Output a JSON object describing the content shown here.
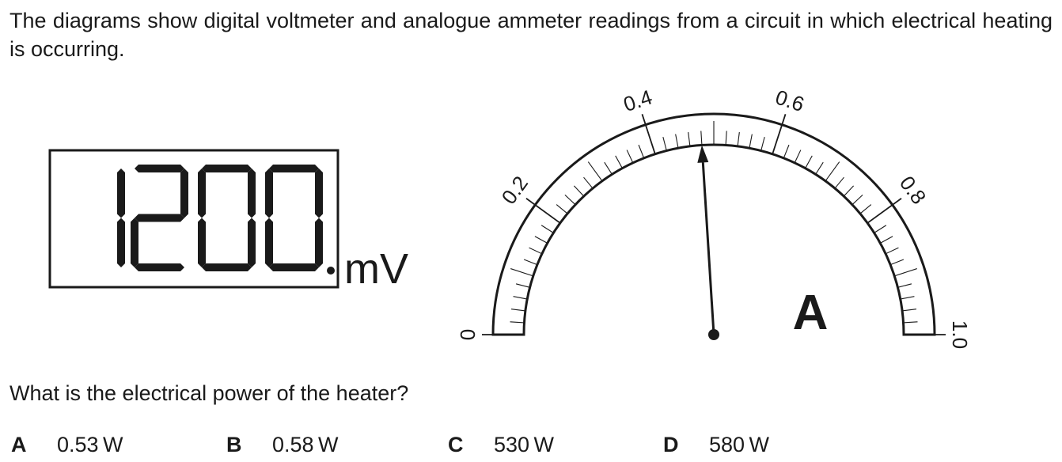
{
  "intro": "The diagrams show digital voltmeter and analogue ammeter readings from a circuit in which electrical heating is occurring.",
  "voltmeter": {
    "digits": [
      "1",
      "2",
      "0",
      "0"
    ],
    "unit": "mV"
  },
  "ammeter": {
    "scale_min": 0,
    "scale_max": 1.0,
    "major_labels": [
      "0",
      "0.2",
      "0.4",
      "0.6",
      "0.8",
      "1.0"
    ],
    "needle_reading": 0.48,
    "unit_symbol": "A"
  },
  "question": "What is the electrical power of the heater?",
  "options": [
    {
      "letter": "A",
      "text": "0.53 W"
    },
    {
      "letter": "B",
      "text": "0.58 W"
    },
    {
      "letter": "C",
      "text": "530 W"
    },
    {
      "letter": "D",
      "text": "580 W"
    }
  ]
}
